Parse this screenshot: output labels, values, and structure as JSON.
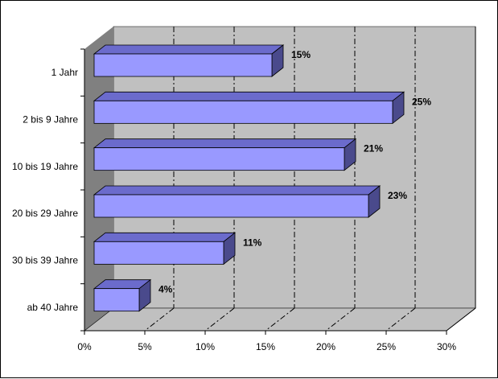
{
  "chart_data": {
    "type": "bar",
    "orientation": "horizontal",
    "style": "3d",
    "categories": [
      "1 Jahr",
      "2 bis 9 Jahre",
      "10 bis 19 Jahre",
      "20 bis 29 Jahre",
      "30 bis 39 Jahre",
      "ab 40 Jahre"
    ],
    "values": [
      15,
      25,
      21,
      23,
      11,
      4
    ],
    "data_labels": [
      "15%",
      "25%",
      "21%",
      "23%",
      "11%",
      "4%"
    ],
    "xlim": [
      0,
      30
    ],
    "x_ticks": [
      0,
      5,
      10,
      15,
      20,
      25,
      30
    ],
    "x_tick_labels": [
      "0%",
      "5%",
      "10%",
      "15%",
      "20%",
      "25%",
      "30%"
    ],
    "title": "",
    "xlabel": "",
    "ylabel": "",
    "grid": "vertical dash-dot",
    "legend": "none",
    "colors": {
      "bar_front": "#9999ff",
      "bar_top": "#6b6bcc",
      "bar_side": "#4a4a8c",
      "back_wall": "#c0c0c0",
      "side_wall": "#808080",
      "floor": "#c0c0c0"
    }
  }
}
